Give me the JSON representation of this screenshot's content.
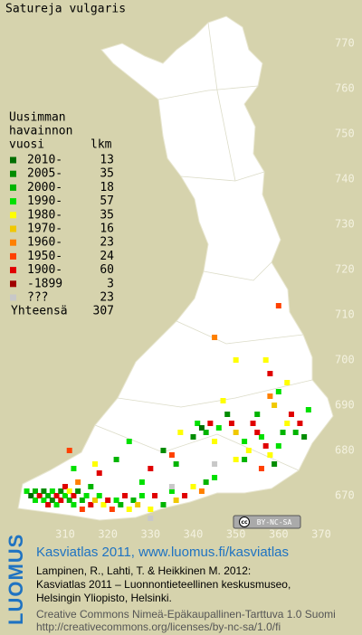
{
  "title": "Satureja vulgaris",
  "legend": {
    "heading": [
      "Uusimman",
      "havainnon",
      "vuosi"
    ],
    "count_heading": "lkm",
    "rows": [
      {
        "label": "2010-",
        "count": 13,
        "color": "#006e00"
      },
      {
        "label": "2005-",
        "count": 35,
        "color": "#008c00"
      },
      {
        "label": "2000-",
        "count": 18,
        "color": "#00b400"
      },
      {
        "label": "1990-",
        "count": 57,
        "color": "#00e000"
      },
      {
        "label": "1980-",
        "count": 35,
        "color": "#ffff00"
      },
      {
        "label": "1970-",
        "count": 16,
        "color": "#f0c800"
      },
      {
        "label": "1960-",
        "count": 23,
        "color": "#ff8000"
      },
      {
        "label": "1950-",
        "count": 24,
        "color": "#ff4000"
      },
      {
        "label": "1900-",
        "count": 60,
        "color": "#e00000"
      },
      {
        "label": "-1899",
        "count": 3,
        "color": "#a00000"
      },
      {
        "label": "???",
        "count": 23,
        "color": "#c8c8c8"
      }
    ],
    "total_label": "Yhteensä",
    "total": 307
  },
  "map": {
    "xticks": [
      310,
      320,
      330,
      340,
      350,
      360,
      370
    ],
    "yticks": [
      670,
      680,
      690,
      700,
      710,
      720,
      730,
      740,
      750,
      760,
      770
    ],
    "observations": [
      [
        301,
        671,
        3
      ],
      [
        302,
        670,
        0
      ],
      [
        303,
        671,
        2
      ],
      [
        303,
        669,
        3
      ],
      [
        304,
        670,
        8
      ],
      [
        305,
        671,
        1
      ],
      [
        305,
        669,
        3
      ],
      [
        306,
        670,
        2
      ],
      [
        306,
        668,
        8
      ],
      [
        307,
        671,
        3
      ],
      [
        307,
        669,
        1
      ],
      [
        308,
        670,
        8
      ],
      [
        308,
        668,
        3
      ],
      [
        309,
        671,
        1
      ],
      [
        309,
        669,
        8
      ],
      [
        310,
        670,
        3
      ],
      [
        310,
        672,
        8
      ],
      [
        311,
        669,
        2
      ],
      [
        311,
        671,
        4
      ],
      [
        312,
        668,
        3
      ],
      [
        312,
        670,
        8
      ],
      [
        313,
        671,
        1
      ],
      [
        313,
        673,
        6
      ],
      [
        314,
        669,
        2
      ],
      [
        314,
        667,
        7
      ],
      [
        315,
        670,
        3
      ],
      [
        316,
        668,
        8
      ],
      [
        316,
        672,
        2
      ],
      [
        317,
        669,
        5
      ],
      [
        318,
        670,
        3
      ],
      [
        319,
        668,
        4
      ],
      [
        320,
        669,
        8
      ],
      [
        321,
        667,
        7
      ],
      [
        322,
        669,
        3
      ],
      [
        323,
        668,
        2
      ],
      [
        324,
        670,
        8
      ],
      [
        325,
        667,
        4
      ],
      [
        326,
        669,
        2
      ],
      [
        327,
        668,
        5
      ],
      [
        328,
        670,
        3
      ],
      [
        330,
        667,
        4
      ],
      [
        331,
        670,
        8
      ],
      [
        333,
        668,
        2
      ],
      [
        335,
        671,
        3
      ],
      [
        336,
        669,
        5
      ],
      [
        338,
        670,
        8
      ],
      [
        340,
        672,
        4
      ],
      [
        342,
        671,
        6
      ],
      [
        343,
        673,
        2
      ],
      [
        345,
        674,
        3
      ],
      [
        311,
        680,
        7
      ],
      [
        312,
        676,
        3
      ],
      [
        317,
        677,
        4
      ],
      [
        318,
        675,
        8
      ],
      [
        322,
        678,
        2
      ],
      [
        325,
        682,
        3
      ],
      [
        330,
        676,
        8
      ],
      [
        333,
        680,
        1
      ],
      [
        335,
        679,
        7
      ],
      [
        337,
        684,
        4
      ],
      [
        340,
        683,
        1
      ],
      [
        341,
        686,
        3
      ],
      [
        342,
        685,
        0
      ],
      [
        343,
        684,
        2
      ],
      [
        344,
        686,
        8
      ],
      [
        345,
        682,
        4
      ],
      [
        346,
        685,
        3
      ],
      [
        348,
        688,
        1
      ],
      [
        349,
        686,
        8
      ],
      [
        350,
        684,
        5
      ],
      [
        352,
        682,
        3
      ],
      [
        353,
        680,
        4
      ],
      [
        354,
        686,
        8
      ],
      [
        355,
        688,
        2
      ],
      [
        356,
        683,
        3
      ],
      [
        357,
        681,
        8
      ],
      [
        358,
        679,
        4
      ],
      [
        359,
        677,
        1
      ],
      [
        360,
        681,
        3
      ],
      [
        361,
        684,
        2
      ],
      [
        362,
        686,
        4
      ],
      [
        363,
        688,
        8
      ],
      [
        359,
        690,
        5
      ],
      [
        358,
        692,
        6
      ],
      [
        360,
        693,
        3
      ],
      [
        362,
        695,
        4
      ],
      [
        358,
        697,
        8
      ],
      [
        357,
        700,
        4
      ],
      [
        355,
        684,
        8
      ],
      [
        352,
        678,
        2
      ],
      [
        356,
        676,
        7
      ],
      [
        350,
        678,
        4
      ],
      [
        345,
        705,
        6
      ],
      [
        360,
        712,
        7
      ],
      [
        350,
        700,
        4
      ],
      [
        367,
        689,
        3
      ],
      [
        365,
        686,
        8
      ],
      [
        364,
        684,
        2
      ],
      [
        366,
        683,
        1
      ],
      [
        328,
        673,
        3
      ],
      [
        336,
        677,
        2
      ],
      [
        347,
        691,
        4
      ],
      [
        335,
        672,
        10
      ],
      [
        330,
        665,
        10
      ],
      [
        345,
        677,
        10
      ]
    ]
  },
  "footer": {
    "logo": "LUOMUS",
    "headline": "Kasviatlas 2011, www.luomus.fi/kasviatlas",
    "citation": [
      "Lampinen, R., Lahti, T. & Heikkinen M. 2012:",
      "Kasviatlas 2011 – Luonnontieteellinen keskusmuseo,",
      "Helsingin Yliopisto, Helsinki."
    ],
    "license": [
      "Creative Commons Nimeä-Epäkaupallinen-Tarttuva 1.0 Suomi",
      "http://creativecommons.org/licenses/by-nc-sa/1.0/fi"
    ],
    "cc_badge": {
      "icon": "cc",
      "text": "BY-NC-SA"
    }
  }
}
